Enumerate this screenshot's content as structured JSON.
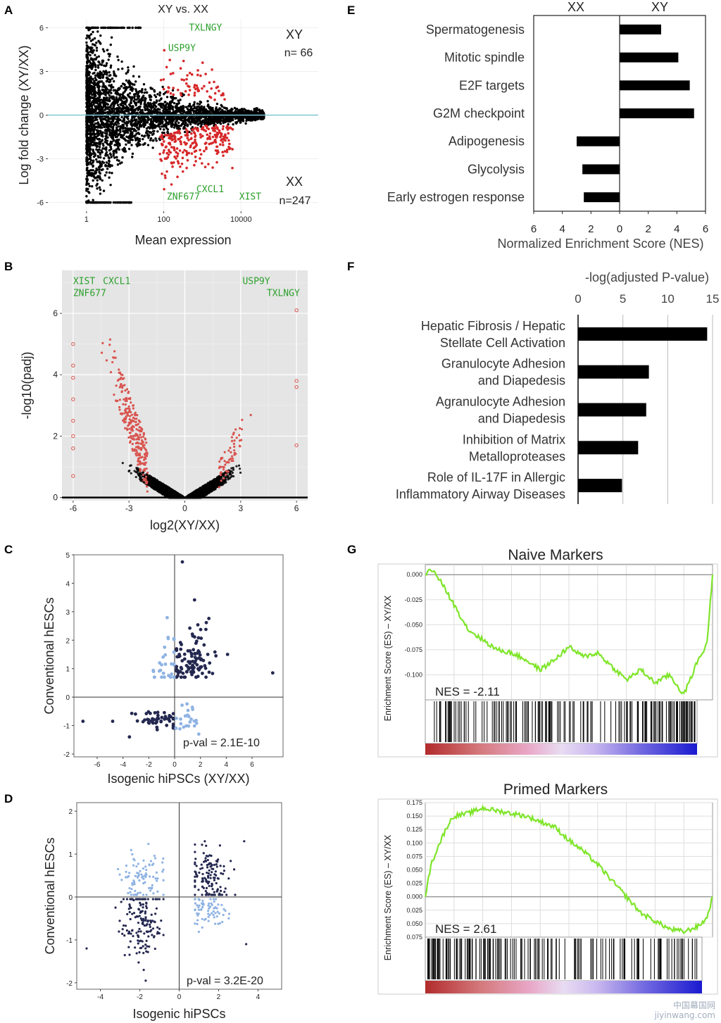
{
  "figure": {
    "watermark": "中国幕国网\njiyinwang.com"
  },
  "chart_data": [
    {
      "panel": "A",
      "type": "scatter",
      "title": "XY vs. XX",
      "xlabel": "Mean expression",
      "ylabel": "Log fold change (XY/XX)",
      "xscale": "log10",
      "xlim": [
        0.1,
        1000000
      ],
      "ylim": [
        -6.6,
        6.6
      ],
      "xticks": [
        1,
        100,
        10000
      ],
      "xtick_labels": [
        "1",
        "100",
        "10000"
      ],
      "yticks": [
        -6,
        -3,
        0,
        3,
        6
      ],
      "ytick_labels": [
        "-6",
        "-3",
        "0",
        "3",
        "6"
      ],
      "zero_line_color": "#7fc8d6",
      "sig_color": "#d62728",
      "ns_color": "#000000",
      "label_color": "#2ca02c",
      "corner_labels": [
        {
          "text": "XY",
          "count": "n= 66"
        },
        {
          "text": "XX",
          "count": "n=247"
        }
      ],
      "gene_labels": [
        {
          "gene": "TXLNGY",
          "x": 450,
          "y": 6.0
        },
        {
          "gene": "USP9Y",
          "x": 130,
          "y": 4.6
        },
        {
          "gene": "CXCL1",
          "x": 700,
          "y": -5.1
        },
        {
          "gene": "ZNF677",
          "x": 120,
          "y": -5.6
        },
        {
          "gene": "XIST",
          "x": 9000,
          "y": -5.6
        }
      ]
    },
    {
      "panel": "B",
      "type": "scatter",
      "title": "",
      "xlabel": "log2(XY/XX)",
      "ylabel": "-log10(padj)",
      "xlim": [
        -6.6,
        6.6
      ],
      "ylim": [
        -0.1,
        7.4
      ],
      "xticks": [
        -6,
        -3,
        0,
        3,
        6
      ],
      "xtick_labels": [
        "-6",
        "-3",
        "0",
        "3",
        "6"
      ],
      "yticks": [
        0,
        2,
        4,
        6
      ],
      "ytick_labels": [
        "0",
        "2",
        "4",
        "6"
      ],
      "panel_bg": "#e5e5e5",
      "sig_color": "#d9544f",
      "ns_color": "#000000",
      "label_color": "#2ca02c",
      "gene_labels": [
        {
          "gene": "XIST",
          "x": -6.0,
          "y": 7.05
        },
        {
          "gene": "CXCL1",
          "x": -4.4,
          "y": 7.05
        },
        {
          "gene": "ZNF677",
          "x": -6.0,
          "y": 6.65
        },
        {
          "gene": "USP9Y",
          "x": 3.1,
          "y": 7.05
        },
        {
          "gene": "TXLNGY",
          "x": 4.4,
          "y": 6.65
        }
      ]
    },
    {
      "panel": "C",
      "type": "scatter",
      "title": "",
      "xlabel": "Isogenic hiPSCs (XY/XX)",
      "ylabel": "Conventional hESCs",
      "xlim": [
        -7.8,
        8.4
      ],
      "ylim": [
        -2.1,
        5.0
      ],
      "xticks": [
        -6,
        -4,
        -2,
        0,
        2,
        4,
        6
      ],
      "xtick_labels": [
        "-6",
        "-4",
        "-2",
        "0",
        "2",
        "4",
        "6"
      ],
      "yticks": [
        -2,
        -1,
        0,
        1,
        2,
        3,
        4,
        5
      ],
      "ytick_labels": [
        "-2",
        "-1",
        "0",
        "1",
        "2",
        "3",
        "4",
        "5"
      ],
      "concordant_color": "#242850",
      "discordant_color": "#8fb3e3",
      "annotation": "p-val = 2.1E-10"
    },
    {
      "panel": "D",
      "type": "scatter",
      "title": "",
      "xlabel": "Isogenic hiPSCs",
      "ylabel": "Conventional hESCs",
      "xlim": [
        -5.2,
        5.2
      ],
      "ylim": [
        -2.15,
        2.2
      ],
      "xticks": [
        -4,
        -2,
        0,
        2,
        4
      ],
      "xtick_labels": [
        "-4",
        "-2",
        "0",
        "2",
        "4"
      ],
      "yticks": [
        -2,
        -1,
        0,
        1,
        2
      ],
      "ytick_labels": [
        "-2",
        "-1",
        "0",
        "1",
        "2"
      ],
      "concordant_color": "#242850",
      "discordant_color": "#8fb3e3",
      "annotation": "p-val = 3.2E-20"
    },
    {
      "panel": "E",
      "type": "bar",
      "orientation": "horizontal",
      "categories": [
        "Spermatogenesis",
        "Mitotic spindle",
        "E2F targets",
        "G2M checkpoint",
        "Adipogenesis",
        "Glycolysis",
        "Early estrogen response"
      ],
      "values": [
        2.9,
        4.1,
        4.9,
        5.2,
        -3.0,
        -2.6,
        -2.5
      ],
      "xlabel": "Normalized Enrichment Score (NES)",
      "xlim": [
        -6,
        6
      ],
      "xticks": [
        -6,
        -4,
        -2,
        0,
        2,
        4,
        6
      ],
      "xtick_labels": [
        "6",
        "4",
        "2",
        "0",
        "2",
        "4",
        "6"
      ],
      "group_labels": [
        "XX",
        "XY"
      ],
      "bar_color": "#000000"
    },
    {
      "panel": "F",
      "type": "bar",
      "orientation": "horizontal",
      "categories": [
        [
          "Hepatic Fibrosis / Hepatic",
          "Stellate Cell Activation"
        ],
        [
          "Granulocyte Adhesion",
          "and Diapedesis"
        ],
        [
          "Agranulocyte Adhesion",
          "and Diapedesis"
        ],
        [
          "Inhibition of Matrix",
          "Metalloproteases"
        ],
        [
          "Role of IL-17F in Allergic",
          "Inflammatory Airway Diseases"
        ]
      ],
      "values": [
        14.4,
        7.9,
        7.6,
        6.7,
        4.9
      ],
      "xlabel": "-log(adjusted P-value)",
      "xlim": [
        0,
        15
      ],
      "xticks": [
        0,
        5,
        10,
        15
      ],
      "xtick_labels": [
        "0",
        "5",
        "10",
        "15"
      ],
      "bar_color": "#000000"
    },
    {
      "panel": "G",
      "type": "line",
      "title": "Naive Markers",
      "ylabel": "Enrichment Score (ES) – XY/XX",
      "ylim": [
        -0.125,
        0.01
      ],
      "yticks": [
        0.0,
        -0.025,
        -0.05,
        -0.075,
        -0.1
      ],
      "ytick_labels": [
        "0.000",
        "-0.025",
        "-0.050",
        "-0.075",
        "-0.100"
      ],
      "annotation": "NES = -2.11",
      "line_color": "#7fe52a",
      "x": [
        0,
        0.02,
        0.05,
        0.1,
        0.15,
        0.2,
        0.25,
        0.3,
        0.35,
        0.4,
        0.45,
        0.5,
        0.55,
        0.6,
        0.65,
        0.7,
        0.75,
        0.8,
        0.85,
        0.9,
        0.95,
        0.98,
        1.0
      ],
      "y": [
        0.0,
        0.006,
        -0.005,
        -0.03,
        -0.055,
        -0.065,
        -0.075,
        -0.078,
        -0.085,
        -0.095,
        -0.085,
        -0.072,
        -0.082,
        -0.078,
        -0.092,
        -0.105,
        -0.095,
        -0.108,
        -0.1,
        -0.12,
        -0.085,
        -0.07,
        0.0
      ]
    },
    {
      "panel": "G",
      "type": "line",
      "title": "Primed Markers",
      "ylabel": "Enrichment Score (ES) – XY/XX",
      "ylim": [
        -0.075,
        0.175
      ],
      "yticks": [
        0.175,
        0.15,
        0.125,
        0.1,
        0.075,
        0.05,
        0.025,
        0.0,
        -0.025,
        -0.05,
        -0.075
      ],
      "ytick_labels": [
        "0.175",
        "0.150",
        "0.125",
        "0.100",
        "0.075",
        "0.050",
        "0.025",
        "0.000",
        "0.025",
        "0.050",
        "0.075"
      ],
      "annotation": "NES = 2.61",
      "line_color": "#7fe52a",
      "x": [
        0,
        0.02,
        0.05,
        0.08,
        0.1,
        0.15,
        0.2,
        0.25,
        0.3,
        0.35,
        0.4,
        0.45,
        0.5,
        0.55,
        0.6,
        0.65,
        0.7,
        0.75,
        0.8,
        0.85,
        0.9,
        0.95,
        0.98,
        1.0
      ],
      "y": [
        0.0,
        0.06,
        0.1,
        0.135,
        0.15,
        0.155,
        0.165,
        0.16,
        0.155,
        0.15,
        0.14,
        0.13,
        0.105,
        0.085,
        0.06,
        0.03,
        0.0,
        -0.03,
        -0.045,
        -0.06,
        -0.065,
        -0.055,
        -0.04,
        0.0
      ]
    }
  ]
}
